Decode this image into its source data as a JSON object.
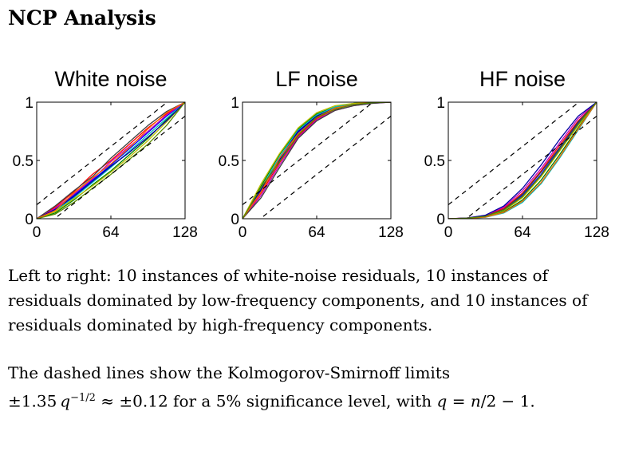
{
  "page": {
    "title": "NCP Analysis"
  },
  "caption": {
    "paragraph1": "Left to right: 10 instances of white-noise residuals, 10 instances of residuals dominated by low-frequency components, and 10 instances of residuals dominated by high-frequency components.",
    "p2_intro": "The dashed lines show the Kolmogorov-Smirnoff limits",
    "p2_pm": "±1.35",
    "p2_q": "q",
    "p2_exp": "−1/2",
    "p2_approx": " ≈ ±0.12 for a 5% significance level, with ",
    "p2_q2": "q",
    "p2_eq": " = ",
    "p2_n": "n",
    "p2_rest": "/2 − 1."
  },
  "colors": [
    "#0000ff",
    "#008000",
    "#ff0000",
    "#00bfbf",
    "#bf00bf",
    "#bfbf00",
    "#404040",
    "#0000a0",
    "#ff6600",
    "#5a8a00"
  ],
  "chart_data": [
    {
      "type": "line",
      "title": "White noise",
      "xlabel": "",
      "ylabel": "",
      "xlim": [
        0,
        128
      ],
      "ylim": [
        0,
        1
      ],
      "xticks": [
        "0",
        "64",
        "128"
      ],
      "yticks": [
        "0",
        "0.5",
        "1"
      ],
      "ks_limit": 0.12,
      "x": [
        0,
        16,
        32,
        48,
        64,
        80,
        96,
        112,
        128
      ],
      "series": [
        {
          "values": [
            0,
            0.08,
            0.2,
            0.33,
            0.46,
            0.6,
            0.74,
            0.88,
            1
          ]
        },
        {
          "values": [
            0,
            0.05,
            0.16,
            0.29,
            0.41,
            0.55,
            0.69,
            0.85,
            1
          ]
        },
        {
          "values": [
            0,
            0.1,
            0.23,
            0.38,
            0.5,
            0.64,
            0.78,
            0.9,
            1
          ]
        },
        {
          "values": [
            0,
            0.07,
            0.18,
            0.31,
            0.44,
            0.58,
            0.72,
            0.86,
            1
          ]
        },
        {
          "values": [
            0,
            0.09,
            0.21,
            0.34,
            0.49,
            0.62,
            0.75,
            0.89,
            1
          ]
        },
        {
          "values": [
            0,
            0.06,
            0.17,
            0.28,
            0.4,
            0.53,
            0.67,
            0.83,
            1
          ]
        },
        {
          "values": [
            0,
            0.11,
            0.24,
            0.36,
            0.52,
            0.66,
            0.8,
            0.92,
            1
          ]
        },
        {
          "values": [
            0,
            0.08,
            0.19,
            0.32,
            0.45,
            0.57,
            0.7,
            0.84,
            1
          ]
        },
        {
          "values": [
            0,
            0.07,
            0.22,
            0.35,
            0.47,
            0.61,
            0.77,
            0.91,
            1
          ]
        },
        {
          "values": [
            0,
            0.04,
            0.14,
            0.26,
            0.38,
            0.51,
            0.64,
            0.8,
            1
          ]
        }
      ]
    },
    {
      "type": "line",
      "title": "LF noise",
      "xlabel": "",
      "ylabel": "",
      "xlim": [
        0,
        128
      ],
      "ylim": [
        0,
        1
      ],
      "xticks": [
        "0",
        "64",
        "128"
      ],
      "yticks": [
        "0",
        "0.5",
        "1"
      ],
      "ks_limit": 0.12,
      "x": [
        0,
        16,
        32,
        48,
        64,
        80,
        96,
        112,
        128
      ],
      "series": [
        {
          "values": [
            0,
            0.24,
            0.5,
            0.74,
            0.88,
            0.95,
            0.98,
            0.995,
            1
          ]
        },
        {
          "values": [
            0,
            0.28,
            0.55,
            0.77,
            0.9,
            0.96,
            0.99,
            1.0,
            1
          ]
        },
        {
          "values": [
            0,
            0.22,
            0.48,
            0.71,
            0.86,
            0.94,
            0.98,
            0.995,
            1
          ]
        },
        {
          "values": [
            0,
            0.26,
            0.53,
            0.76,
            0.89,
            0.96,
            0.99,
            1.0,
            1
          ]
        },
        {
          "values": [
            0,
            0.2,
            0.46,
            0.7,
            0.85,
            0.93,
            0.97,
            0.99,
            1
          ]
        },
        {
          "values": [
            0,
            0.3,
            0.56,
            0.78,
            0.91,
            0.97,
            0.99,
            1.0,
            1
          ]
        },
        {
          "values": [
            0,
            0.18,
            0.44,
            0.69,
            0.84,
            0.93,
            0.97,
            0.99,
            1
          ]
        },
        {
          "values": [
            0,
            0.25,
            0.51,
            0.75,
            0.88,
            0.95,
            0.98,
            0.995,
            1
          ]
        },
        {
          "values": [
            0,
            0.23,
            0.52,
            0.73,
            0.87,
            0.95,
            0.98,
            1.0,
            1
          ]
        },
        {
          "values": [
            0,
            0.27,
            0.49,
            0.72,
            0.87,
            0.94,
            0.98,
            0.995,
            1
          ]
        }
      ]
    },
    {
      "type": "line",
      "title": "HF noise",
      "xlabel": "",
      "ylabel": "",
      "xlim": [
        0,
        128
      ],
      "ylim": [
        0,
        1
      ],
      "xticks": [
        "0",
        "64",
        "128"
      ],
      "yticks": [
        "0",
        "0.5",
        "1"
      ],
      "ks_limit": 0.12,
      "x": [
        0,
        16,
        32,
        48,
        64,
        80,
        96,
        112,
        128
      ],
      "series": [
        {
          "values": [
            0,
            0.005,
            0.02,
            0.08,
            0.2,
            0.38,
            0.6,
            0.82,
            1
          ]
        },
        {
          "values": [
            0,
            0.004,
            0.015,
            0.06,
            0.16,
            0.33,
            0.55,
            0.78,
            1
          ]
        },
        {
          "values": [
            0,
            0.006,
            0.025,
            0.09,
            0.22,
            0.41,
            0.63,
            0.84,
            1
          ]
        },
        {
          "values": [
            0,
            0.003,
            0.012,
            0.05,
            0.14,
            0.3,
            0.52,
            0.76,
            1
          ]
        },
        {
          "values": [
            0,
            0.007,
            0.028,
            0.1,
            0.24,
            0.43,
            0.65,
            0.86,
            1
          ]
        },
        {
          "values": [
            0,
            0.004,
            0.018,
            0.07,
            0.18,
            0.36,
            0.58,
            0.8,
            1
          ]
        },
        {
          "values": [
            0,
            0.005,
            0.022,
            0.08,
            0.21,
            0.4,
            0.61,
            0.83,
            1
          ]
        },
        {
          "values": [
            0,
            0.006,
            0.03,
            0.11,
            0.26,
            0.46,
            0.68,
            0.88,
            1
          ]
        },
        {
          "values": [
            0,
            0.003,
            0.014,
            0.055,
            0.15,
            0.31,
            0.53,
            0.77,
            1
          ]
        },
        {
          "values": [
            0,
            0.005,
            0.02,
            0.075,
            0.19,
            0.37,
            0.59,
            0.81,
            1
          ]
        }
      ]
    }
  ]
}
